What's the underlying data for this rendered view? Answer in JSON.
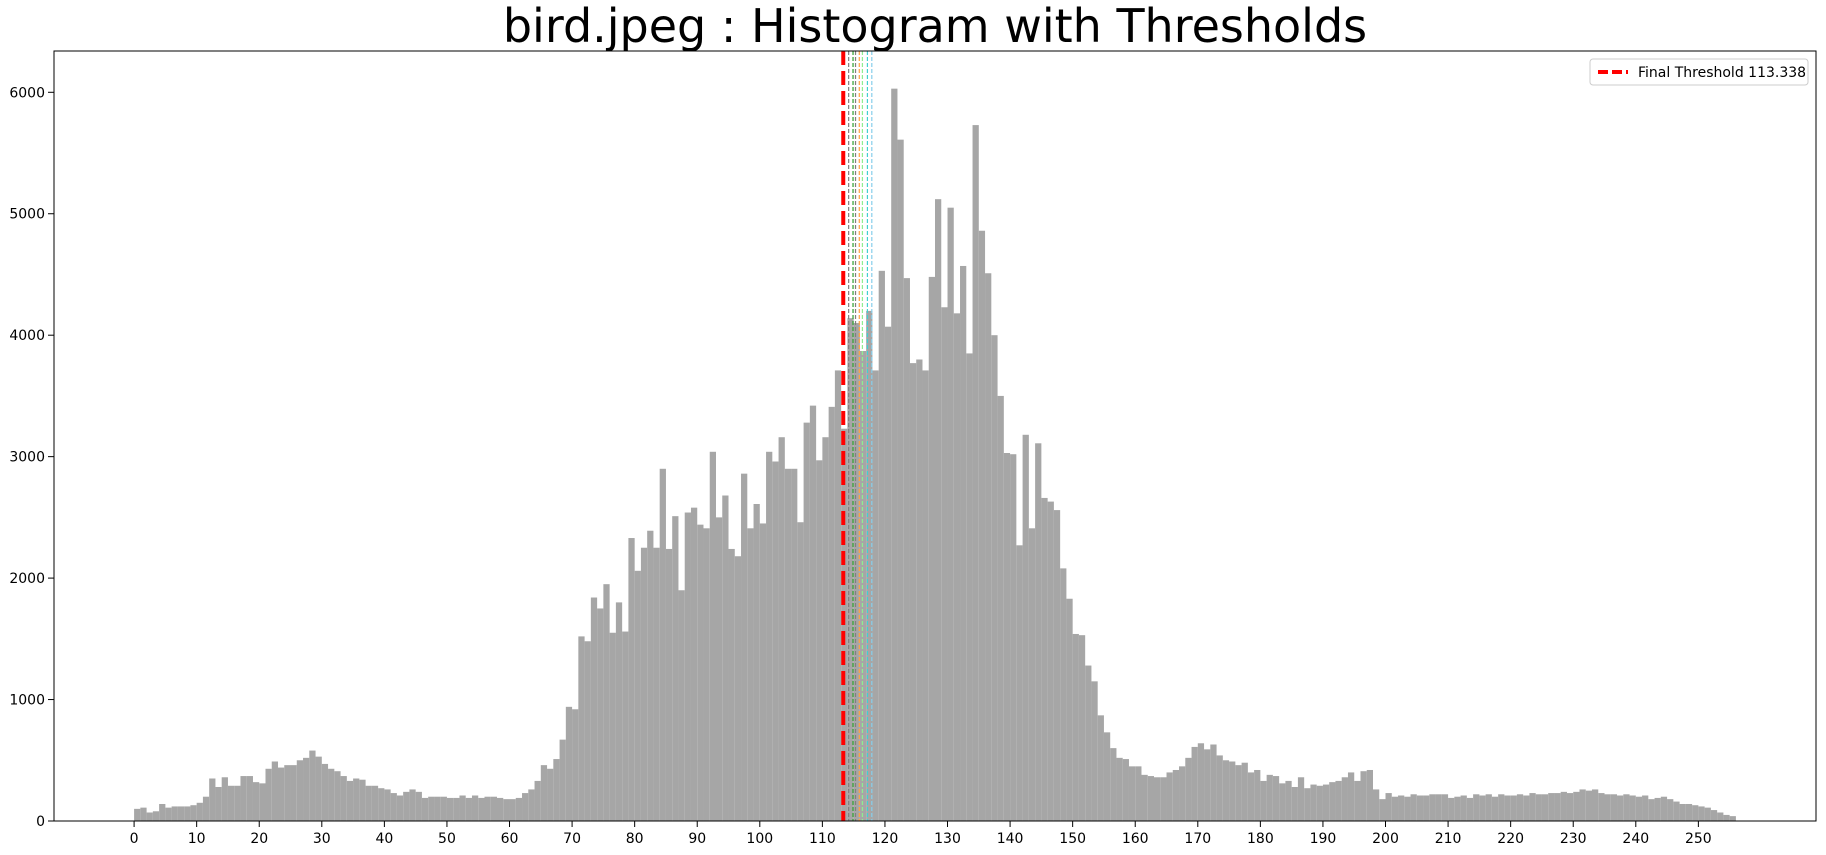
{
  "chart_data": {
    "type": "histogram",
    "title": "bird.jpeg : Histogram with Thresholds",
    "bins": [
      0,
      1,
      2,
      3,
      4,
      5,
      6,
      7,
      8,
      9,
      10,
      11,
      12,
      13,
      14,
      15,
      16,
      17,
      18,
      19,
      20,
      21,
      22,
      23,
      24,
      25,
      26,
      27,
      28,
      29,
      30,
      31,
      32,
      33,
      34,
      35,
      36,
      37,
      38,
      39,
      40,
      41,
      42,
      43,
      44,
      45,
      46,
      47,
      48,
      49,
      50,
      51,
      52,
      53,
      54,
      55,
      56,
      57,
      58,
      59,
      60,
      61,
      62,
      63,
      64,
      65,
      66,
      67,
      68,
      69,
      70,
      71,
      72,
      73,
      74,
      75,
      76,
      77,
      78,
      79,
      80,
      81,
      82,
      83,
      84,
      85,
      86,
      87,
      88,
      89,
      90,
      91,
      92,
      93,
      94,
      95,
      96,
      97,
      98,
      99,
      100,
      101,
      102,
      103,
      104,
      105,
      106,
      107,
      108,
      109,
      110,
      111,
      112,
      113,
      114,
      115,
      116,
      117,
      118,
      119,
      120,
      121,
      122,
      123,
      124,
      125,
      126,
      127,
      128,
      129,
      130,
      131,
      132,
      133,
      134,
      135,
      136,
      137,
      138,
      139,
      140,
      141,
      142,
      143,
      144,
      145,
      146,
      147,
      148,
      149,
      150,
      151,
      152,
      153,
      154,
      155,
      156,
      157,
      158,
      159,
      160,
      161,
      162,
      163,
      164,
      165,
      166,
      167,
      168,
      169,
      170,
      171,
      172,
      173,
      174,
      175,
      176,
      177,
      178,
      179,
      180,
      181,
      182,
      183,
      184,
      185,
      186,
      187,
      188,
      189,
      190,
      191,
      192,
      193,
      194,
      195,
      196,
      197,
      198,
      199,
      200,
      201,
      202,
      203,
      204,
      205,
      206,
      207,
      208,
      209,
      210,
      211,
      212,
      213,
      214,
      215,
      216,
      217,
      218,
      219,
      220,
      221,
      222,
      223,
      224,
      225,
      226,
      227,
      228,
      229,
      230,
      231,
      232,
      233,
      234,
      235,
      236,
      237,
      238,
      239,
      240,
      241,
      242,
      243,
      244,
      245,
      246,
      247,
      248,
      249,
      250,
      251,
      252,
      253,
      254,
      255,
      256
    ],
    "counts": [
      100,
      110,
      70,
      80,
      140,
      110,
      120,
      120,
      120,
      130,
      150,
      200,
      350,
      280,
      360,
      290,
      290,
      370,
      370,
      320,
      310,
      430,
      490,
      440,
      460,
      460,
      500,
      520,
      580,
      530,
      470,
      430,
      410,
      370,
      330,
      350,
      340,
      290,
      290,
      270,
      260,
      230,
      210,
      240,
      260,
      240,
      190,
      200,
      200,
      200,
      190,
      190,
      210,
      190,
      210,
      190,
      200,
      200,
      190,
      180,
      180,
      190,
      230,
      260,
      330,
      460,
      430,
      510,
      670,
      940,
      920,
      1520,
      1480,
      1840,
      1750,
      1950,
      1550,
      1800,
      1560,
      2330,
      2060,
      2250,
      2390,
      2250,
      2900,
      2240,
      2510,
      1900,
      2540,
      2580,
      2440,
      2410,
      3040,
      2500,
      2680,
      2240,
      2180,
      2860,
      2410,
      2610,
      2450,
      3040,
      2960,
      3160,
      2900,
      2900,
      2460,
      3280,
      3420,
      2970,
      3160,
      3410,
      3710,
      3230,
      4140,
      4100,
      3870,
      4200,
      3710,
      4530,
      4070,
      6030,
      5610,
      4470,
      3770,
      3800,
      3710,
      4480,
      5120,
      4230,
      5050,
      4180,
      4570,
      3850,
      5730,
      4860,
      4510,
      4000,
      3500,
      3030,
      3020,
      2270,
      3180,
      2410,
      3110,
      2660,
      2630,
      2560,
      2080,
      1830,
      1540,
      1530,
      1280,
      1150,
      870,
      730,
      600,
      520,
      510,
      450,
      450,
      380,
      370,
      360,
      360,
      400,
      420,
      450,
      520,
      610,
      640,
      590,
      630,
      540,
      500,
      490,
      460,
      480,
      400,
      420,
      330,
      380,
      370,
      310,
      330,
      280,
      360,
      270,
      300,
      290,
      300,
      320,
      330,
      360,
      400,
      330,
      410,
      420,
      260,
      180,
      230,
      200,
      210,
      200,
      220,
      210,
      210,
      220,
      220,
      220,
      190,
      200,
      210,
      190,
      220,
      210,
      220,
      200,
      220,
      210,
      210,
      220,
      210,
      230,
      220,
      220,
      230,
      230,
      240,
      230,
      240,
      260,
      250,
      260,
      230,
      220,
      220,
      210,
      220,
      210,
      200,
      210,
      180,
      190,
      200,
      180,
      160,
      140,
      140,
      130,
      120,
      110,
      90,
      70,
      50,
      40
    ],
    "color": "#a6a6a6",
    "final_threshold": {
      "name": "Final Threshold 113.338",
      "value": 113.338,
      "color": "#ff0000"
    },
    "thresholds": [
      {
        "value": 114.2,
        "color": "#808080"
      },
      {
        "value": 114.9,
        "color": "#2ca02c"
      },
      {
        "value": 115.3,
        "color": "#808080"
      },
      {
        "value": 115.9,
        "color": "#ffa040"
      },
      {
        "value": 116.4,
        "color": "#90ee90"
      },
      {
        "value": 117.2,
        "color": "#40d0d0"
      },
      {
        "value": 117.9,
        "color": "#87ceeb"
      }
    ],
    "xlim": [
      -12.8,
      268.8
    ],
    "ylim": [
      0,
      6340
    ],
    "xticks": [
      0,
      10,
      20,
      30,
      40,
      50,
      60,
      70,
      80,
      90,
      100,
      110,
      120,
      130,
      140,
      150,
      160,
      170,
      180,
      190,
      200,
      210,
      220,
      230,
      240,
      250
    ],
    "yticks": [
      0,
      1000,
      2000,
      3000,
      4000,
      5000,
      6000
    ],
    "legend": "upper right"
  }
}
